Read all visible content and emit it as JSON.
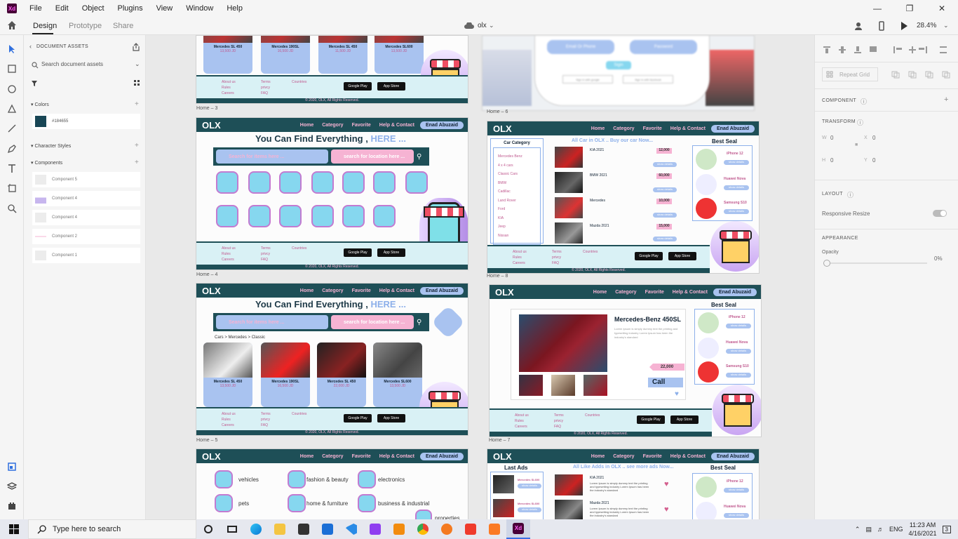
{
  "menu": [
    "File",
    "Edit",
    "Object",
    "Plugins",
    "View",
    "Window",
    "Help"
  ],
  "app_logo": "Xd",
  "tabs": {
    "design": "Design",
    "prototype": "Prototype",
    "share": "Share"
  },
  "doc_name": "olx",
  "zoom": "28.4%",
  "assets": {
    "header": "DOCUMENT ASSETS",
    "search_placeholder": "Search document assets",
    "colors_label": "Colors",
    "color_hex": "#184655",
    "char_styles_label": "Character Styles",
    "components_label": "Components",
    "components": [
      "Component 5",
      "Component 4",
      "Component 4",
      "Component 2",
      "Component 1"
    ]
  },
  "artboards": {
    "home3": "Home – 3",
    "home4": "Home – 4",
    "home5": "Home – 5",
    "home6": "Home – 6",
    "home7": "Home – 7",
    "home8": "Home – 8"
  },
  "site": {
    "logo": "OLX",
    "nav": [
      "Home",
      "Category",
      "Favorite",
      "Help & Contact"
    ],
    "user": "Enad Abuzaid",
    "headline_a": "You Can Find Everything ,",
    "headline_b": "HERE ...",
    "search_items": "Search for items here ...",
    "search_location": "search for location here ...",
    "footer_col1": [
      "About us",
      "Rules",
      "Careers"
    ],
    "footer_col2": [
      "Terms",
      "privcy",
      "FAQ"
    ],
    "countries": "Countries",
    "google_play": "Google Play",
    "app_store": "App Store",
    "copyright": "© 2020, OLX, All Rights Reserved.",
    "breadcrumb": "Cars  >  Mercedes  >  Classic",
    "cars": [
      {
        "name": "Mercedes SL 450",
        "price": "13,500 JD"
      },
      {
        "name": "Mercedes 190SL",
        "price": "16,500 JD"
      },
      {
        "name": "Mercedes SL 450",
        "price": "11,500 JD"
      },
      {
        "name": "Mercedes SL600",
        "price": "13,500 JD"
      }
    ],
    "cars5": [
      {
        "name": "Mercedes SL 450",
        "price": "13,500 JD"
      },
      {
        "name": "Mercedes 190SL",
        "price": "16,500 JD"
      },
      {
        "name": "Mercedes SL 450",
        "price": "22,000 JD"
      },
      {
        "name": "Mercedes SL600",
        "price": "13,500 JD"
      }
    ],
    "more_details": "more details  »",
    "categories": [
      "vehicles",
      "fashion & beauty",
      "electronics",
      "pets",
      "home & furniture",
      "business & industrial",
      "properties"
    ],
    "login_email": "Email Or Phone",
    "login_password": "Password",
    "signin": "Sigin",
    "signin_google": "Sign in with google",
    "signin_facebook": "Sign in with facebook",
    "all_car": "All Car in OLX .. Buy our car Now...",
    "car_category": "Car Category",
    "car_categories": [
      "Mercedes Benz",
      "4 x 4 cars",
      "Classic Cars",
      "BMW",
      "Cadillac",
      "Land Rover",
      "Ford",
      "KIA",
      "Jeep",
      "Nissan"
    ],
    "best_seal": "Best Seal",
    "phones": [
      "iPhone 12",
      "Huawei Nova",
      "Samsung S10"
    ],
    "show_details": "show details",
    "listing": [
      {
        "title": "KIA 2021",
        "price": "12,000"
      },
      {
        "title": "BMW 2021",
        "price": "60,000"
      },
      {
        "title": "Mercedes",
        "price": "10,000"
      },
      {
        "title": "Mazda 2021",
        "price": "15,000"
      }
    ],
    "lorem": "Lorem Ipsum is simply dummy text the printing and typesetting industry Lorem Ipsum has been the industry's standard",
    "detail_title": "Mercedes-Benz 450SL",
    "detail_price": "22,000",
    "call": "Call",
    "last_ads": "Last Ads",
    "all_like": "All Like Adds in OLX .. see more ads Now...",
    "last_items": [
      {
        "name": "Mercedes SL600",
        "btn": "show details"
      },
      {
        "name": "Mercedes SL600",
        "btn": "show details"
      }
    ],
    "adds_listing": [
      {
        "title": "KIA 2021"
      },
      {
        "title": "Mazda 2021"
      }
    ]
  },
  "right_panel": {
    "repeat_grid": "Repeat Grid",
    "component": "COMPONENT",
    "transform": "TRANSFORM",
    "w": "W",
    "w_val": "0",
    "x": "X",
    "x_val": "0",
    "h": "H",
    "h_val": "0",
    "y": "Y",
    "y_val": "0",
    "layout": "LAYOUT",
    "responsive_resize": "Responsive Resize",
    "appearance": "APPEARANCE",
    "opacity": "Opacity",
    "opacity_val": "0%"
  },
  "taskbar": {
    "search": "Type here to search",
    "lang": "ENG",
    "time": "11:23 AM",
    "date": "4/16/2021",
    "notif": "3"
  },
  "colors": {
    "teal": "#1e4f57",
    "pink": "#f6b3d3",
    "blue": "#a9c3f0",
    "swatch": "#184655"
  }
}
